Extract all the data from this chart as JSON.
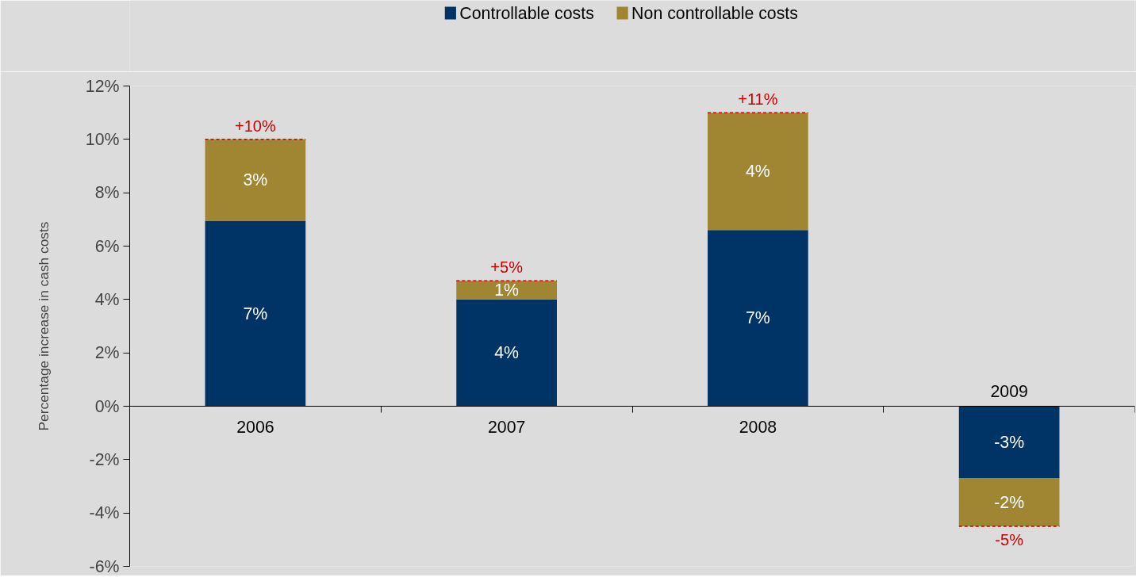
{
  "chart_data": {
    "type": "bar",
    "stacked": true,
    "ylabel": "Percentage increase in cash costs",
    "categories": [
      "2006",
      "2007",
      "2008",
      "2009"
    ],
    "series": [
      {
        "name": "Controllable costs",
        "color": "#003366",
        "values": [
          6.95,
          4.0,
          6.6,
          -2.7
        ],
        "value_labels": [
          "7%",
          "4%",
          "7%",
          "-3%"
        ]
      },
      {
        "name": "Non controllable costs",
        "color": "#a08532",
        "values": [
          3.05,
          0.7,
          4.4,
          -1.8
        ],
        "value_labels": [
          "3%",
          "1%",
          "4%",
          "-2%"
        ]
      }
    ],
    "totals": [
      "+10%",
      "+5%",
      "+11%",
      "-5%"
    ],
    "ylim": [
      -6,
      12
    ],
    "yticks": [
      {
        "value": -6,
        "label": "-6%"
      },
      {
        "value": -4,
        "label": "-4%"
      },
      {
        "value": -2,
        "label": "-2%"
      },
      {
        "value": 0,
        "label": "0%"
      },
      {
        "value": 2,
        "label": "2%"
      },
      {
        "value": 4,
        "label": "4%"
      },
      {
        "value": 6,
        "label": "6%"
      },
      {
        "value": 8,
        "label": "8%"
      },
      {
        "value": 10,
        "label": "10%"
      },
      {
        "value": 12,
        "label": "12%"
      }
    ],
    "grid": false,
    "legend": "top"
  }
}
